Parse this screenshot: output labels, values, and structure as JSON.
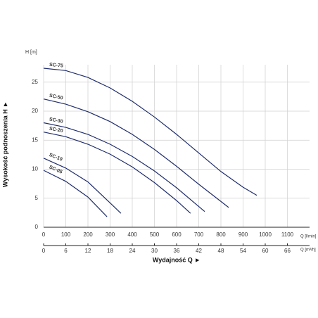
{
  "chart_data": {
    "type": "line",
    "ylabel": "H [m]",
    "xlabel": "Q [l/min]",
    "x2label": "Q [m³/h]",
    "xtitle": "Wydajność Q ►",
    "ytitle": "Wysokość podnoszenia H ►",
    "color": "#1f2d6b",
    "grid": true,
    "xlim": [
      0,
      1200
    ],
    "xticks": [
      0,
      100,
      200,
      300,
      400,
      500,
      600,
      700,
      800,
      900,
      1000,
      1100
    ],
    "x2lim": [
      0,
      72
    ],
    "x2ticks": [
      0,
      6,
      12,
      18,
      24,
      30,
      36,
      42,
      48,
      54,
      60,
      66
    ],
    "ylim": [
      0,
      28
    ],
    "yticks": [
      0,
      5,
      10,
      15,
      20,
      25
    ],
    "series": [
      {
        "name": "SC-75",
        "x": [
          0,
          100,
          200,
          300,
          400,
          500,
          600,
          700,
          800,
          900,
          962
        ],
        "values": [
          27.4,
          27,
          25.8,
          24,
          21.7,
          19,
          16,
          12.8,
          9.6,
          6.9,
          5.5
        ]
      },
      {
        "name": "SC-50",
        "x": [
          0,
          100,
          200,
          300,
          400,
          500,
          600,
          700,
          835
        ],
        "values": [
          22.1,
          21.2,
          19.9,
          18.2,
          16,
          13.4,
          10.5,
          7.4,
          3.4
        ]
      },
      {
        "name": "SC-30",
        "x": [
          0,
          100,
          200,
          300,
          400,
          500,
          600,
          727
        ],
        "values": [
          18,
          17.2,
          16,
          14.3,
          12.2,
          9.7,
          6.8,
          2.7
        ]
      },
      {
        "name": "SC-20",
        "x": [
          0,
          100,
          200,
          300,
          400,
          500,
          600,
          663
        ],
        "values": [
          16.4,
          15.6,
          14.3,
          12.6,
          10.4,
          7.7,
          4.6,
          2.4
        ]
      },
      {
        "name": "SC-10",
        "x": [
          0,
          100,
          200,
          300,
          349
        ],
        "values": [
          11.9,
          10.2,
          7.8,
          4.2,
          2.4
        ]
      },
      {
        "name": "SC-05",
        "x": [
          0,
          100,
          200,
          286
        ],
        "values": [
          9.8,
          7.9,
          5.2,
          1.8
        ]
      }
    ]
  }
}
